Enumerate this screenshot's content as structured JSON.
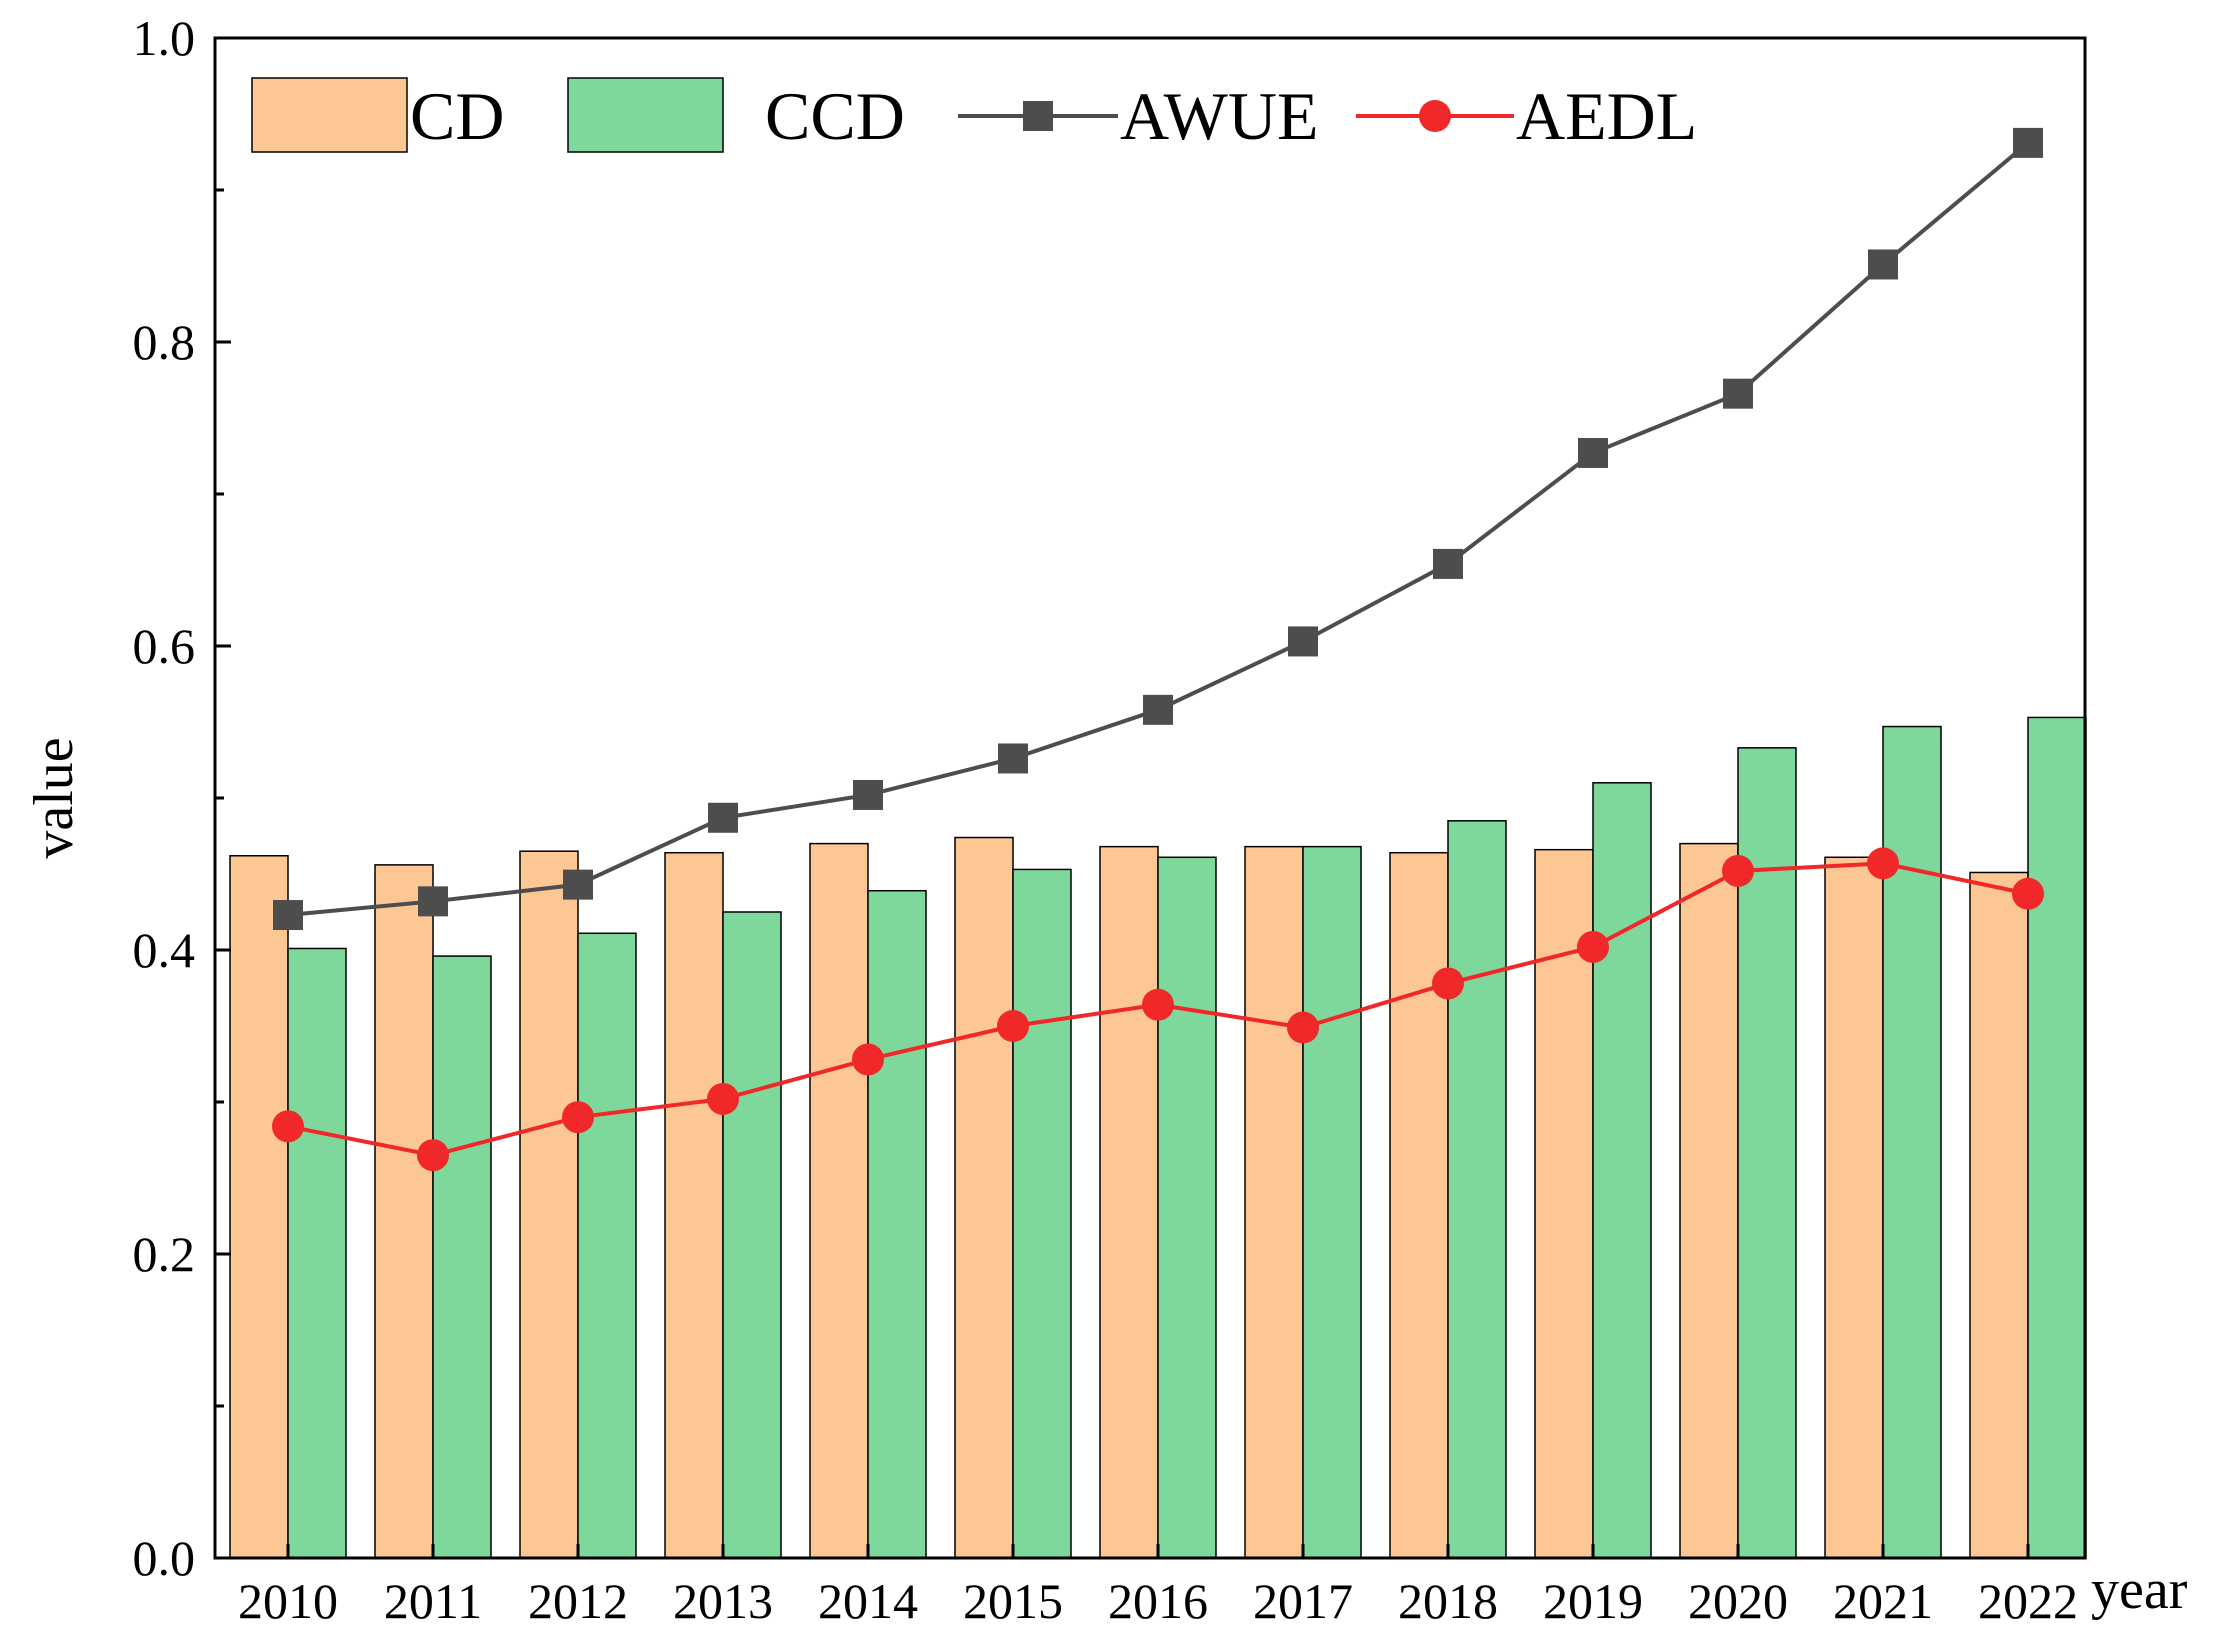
{
  "chart_data": {
    "type": "bar",
    "title": "",
    "xlabel": "year",
    "ylabel": "value",
    "ylim": [
      0,
      1.0
    ],
    "yticks": [
      "0.0",
      "0.2",
      "0.4",
      "0.6",
      "0.8",
      "1.0"
    ],
    "categories": [
      "2010",
      "2011",
      "2012",
      "2013",
      "2014",
      "2015",
      "2016",
      "2017",
      "2018",
      "2019",
      "2020",
      "2021",
      "2022"
    ],
    "bar_series": [
      {
        "name": "CD",
        "color": "#FDC793",
        "values": [
          0.462,
          0.456,
          0.465,
          0.464,
          0.47,
          0.474,
          0.468,
          0.468,
          0.464,
          0.466,
          0.47,
          0.461,
          0.451
        ]
      },
      {
        "name": "CCD",
        "color": "#7FD89B",
        "values": [
          0.401,
          0.396,
          0.411,
          0.425,
          0.439,
          0.453,
          0.461,
          0.468,
          0.485,
          0.51,
          0.533,
          0.547,
          0.553
        ]
      }
    ],
    "line_series": [
      {
        "name": "AWUE",
        "color": "#4D4D4D",
        "marker": "square",
        "values": [
          0.423,
          0.432,
          0.443,
          0.487,
          0.502,
          0.526,
          0.558,
          0.603,
          0.654,
          0.727,
          0.766,
          0.851,
          0.931
        ]
      },
      {
        "name": "AEDL",
        "color": "#F0282A",
        "marker": "circle",
        "values": [
          0.284,
          0.265,
          0.29,
          0.302,
          0.328,
          0.35,
          0.364,
          0.349,
          0.378,
          0.402,
          0.452,
          0.457,
          0.437
        ]
      }
    ],
    "legend_position": "top"
  }
}
